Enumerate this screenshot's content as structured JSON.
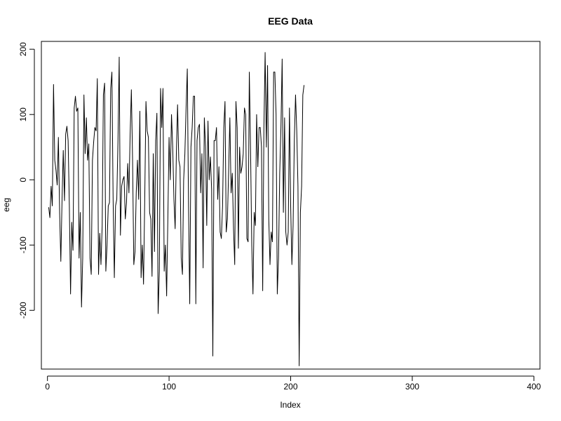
{
  "chart_data": {
    "type": "line",
    "title": "EEG Data",
    "xlabel": "Index",
    "ylabel": "eeg",
    "xlim": [
      -5,
      405
    ],
    "ylim": [
      -290,
      212
    ],
    "x_ticks": [
      0,
      100,
      200,
      300,
      400
    ],
    "y_ticks": [
      -200,
      -100,
      0,
      100,
      200
    ],
    "x_tick_labels": [
      "0",
      "100",
      "200",
      "300",
      "400"
    ],
    "y_tick_labels": [
      "-200",
      "-100",
      "0",
      "100",
      "200"
    ],
    "grid": false,
    "line_color": "#000000",
    "series": [
      {
        "x_start": 1,
        "values": [
          -42,
          -58,
          -10,
          -40,
          146,
          30,
          15,
          -8,
          65,
          -50,
          -125,
          -30,
          45,
          -32,
          70,
          82,
          60,
          -40,
          -175,
          -65,
          -108,
          110,
          128,
          105,
          110,
          -120,
          -50,
          -195,
          -120,
          130,
          40,
          95,
          30,
          55,
          -120,
          -145,
          30,
          58,
          80,
          75,
          155,
          -145,
          -82,
          -130,
          -70,
          130,
          148,
          -140,
          -100,
          -40,
          -35,
          140,
          165,
          -30,
          -150,
          -40,
          -30,
          60,
          188,
          -85,
          -10,
          0,
          5,
          -60,
          -35,
          25,
          -20,
          70,
          138,
          30,
          -130,
          -110,
          -20,
          30,
          -30,
          105,
          -150,
          -100,
          -160,
          -30,
          120,
          75,
          65,
          -50,
          -60,
          -148,
          40,
          -110,
          60,
          102,
          -205,
          -140,
          140,
          80,
          140,
          -140,
          -100,
          -178,
          -60,
          65,
          0,
          100,
          50,
          -30,
          -75,
          40,
          115,
          30,
          20,
          -120,
          -145,
          0,
          40,
          110,
          170,
          -40,
          -190,
          50,
          80,
          128,
          128,
          -190,
          60,
          80,
          85,
          -20,
          40,
          -135,
          95,
          50,
          -70,
          90,
          0,
          35,
          -15,
          -270,
          60,
          60,
          80,
          -30,
          20,
          -80,
          -90,
          -40,
          80,
          120,
          -80,
          -60,
          15,
          95,
          -20,
          10,
          -75,
          -130,
          120,
          80,
          -105,
          50,
          10,
          20,
          40,
          110,
          100,
          -90,
          -95,
          165,
          50,
          -100,
          -175,
          -50,
          -70,
          100,
          20,
          80,
          80,
          50,
          -170,
          80,
          195,
          50,
          175,
          -60,
          -130,
          -80,
          -95,
          165,
          165,
          100,
          -175,
          -120,
          10,
          80,
          185,
          -50,
          95,
          -80,
          -100,
          -80,
          110,
          -40,
          -130,
          -70,
          60,
          130,
          75,
          -10,
          -285,
          -50,
          -10,
          130,
          145
        ]
      }
    ]
  }
}
